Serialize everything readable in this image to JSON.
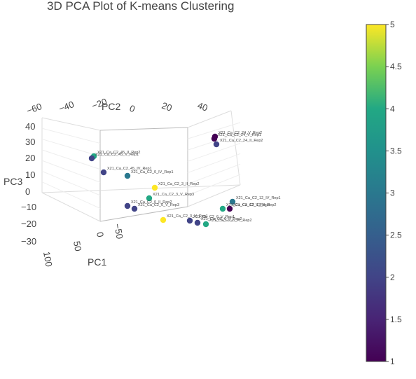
{
  "chart_data": {
    "type": "scatter",
    "title": "3D PCA Plot of K-means Clustering",
    "axes": {
      "pc1": {
        "label": "PC1",
        "ticks": [
          "100",
          "50",
          "0",
          "−50"
        ]
      },
      "pc2": {
        "label": "PC2",
        "ticks": [
          "−60",
          "−40",
          "−20",
          "0",
          "20",
          "40"
        ]
      },
      "pc3": {
        "label": "PC3",
        "ticks": [
          "40",
          "30",
          "20",
          "10",
          "0",
          "−10",
          "−20",
          "−30"
        ]
      }
    },
    "colorbar": {
      "colorscale": "Viridis",
      "min": 1,
      "max": 5,
      "ticks": [
        "5",
        "4.5",
        "4",
        "3.5",
        "3",
        "2.5",
        "2",
        "1.5",
        "1"
      ]
    },
    "points": [
      {
        "label": "X21_Ca_C2_24_V_Rep2",
        "cluster": 1
      },
      {
        "label": "X21_Ca_C2_24_V_Rep1",
        "cluster": 1
      },
      {
        "label": "X21_Ca_C2_24_II_Rep2",
        "cluster": 2
      },
      {
        "label": "X21_Ca_C2_45_II_Rep2",
        "cluster": 4
      },
      {
        "label": "X21_Ca_C2_45_V_Rep1",
        "cluster": 2
      },
      {
        "label": "X21_Ca_C2_45_IV_Rep1",
        "cluster": 2
      },
      {
        "label": "X21_Ca_C2_0_IV_Rep1",
        "cluster": 3
      },
      {
        "label": "X21_Ca_C2_3_II_Rep2",
        "cluster": 5
      },
      {
        "label": "X21_Ca_C2_3_V_Rep3",
        "cluster": 4
      },
      {
        "label": "X21_Ca_C2_0_II_Rep2",
        "cluster": 2
      },
      {
        "label": "X21_Ca_C2_0_V_Rep3",
        "cluster": 2
      },
      {
        "label": "X21_Ca_C2_3_V_Rep1",
        "cluster": 5
      },
      {
        "label": "X21_Ca_C2_12_IV_Rep1",
        "cluster": 3
      },
      {
        "label": "X21_Ca_C2_12_V_Rep3",
        "cluster": 4
      },
      {
        "label": "X21_Ca_C2_12_II_Rep2",
        "cluster": 1
      },
      {
        "label": "X21_Ca_C2_6_V_Rep1",
        "cluster": 2
      },
      {
        "label": "X21_Ca_C2_6_II_Rep2",
        "cluster": 2
      },
      {
        "label": "X21_Ca_C2_6_IV_Rep2",
        "cluster": 4
      }
    ]
  }
}
